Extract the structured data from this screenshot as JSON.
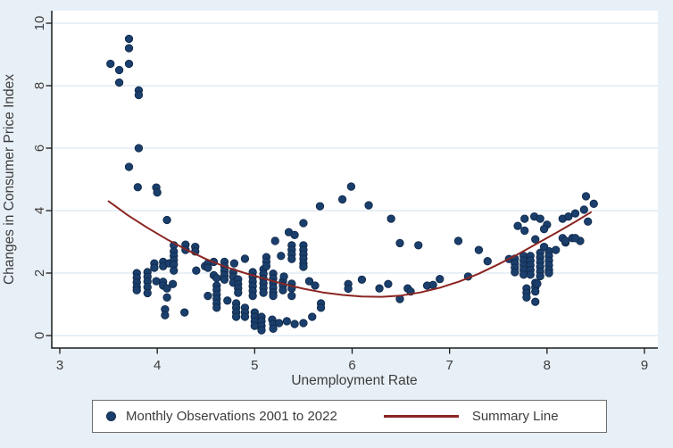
{
  "figure": {
    "background_color": "#e8f0f7",
    "plot_background": "#ffffff",
    "grid_color": "#dce8f1",
    "axis_color": "#1a1a1a",
    "text_color": "#3c3c3c",
    "dot_color": "#1b3f6d",
    "dot_edge_color": "#102a4a",
    "line_color": "#8b2522"
  },
  "legend": {
    "scatter_label": "Monthly Observations 2001 to 2022",
    "line_label": "Summary Line"
  },
  "chart_data": {
    "type": "scatter",
    "title": "",
    "xlabel": "Unemployment Rate",
    "ylabel": "Changes in Consumer Price Index",
    "xlim": [
      2.92,
      9.13
    ],
    "ylim": [
      -0.4,
      10.4
    ],
    "xticks": [
      3,
      4,
      5,
      6,
      7,
      8,
      9
    ],
    "yticks": [
      0,
      2,
      4,
      6,
      8,
      10
    ],
    "grid": "horizontal",
    "legend_position": "bottom",
    "series": [
      {
        "name": "Monthly Observations 2001 to 2022",
        "type": "scatter",
        "color": "#1b3f6d",
        "points": [
          [
            3.52,
            8.7
          ],
          [
            3.61,
            8.5
          ],
          [
            3.61,
            8.1
          ],
          [
            3.71,
            9.5
          ],
          [
            3.71,
            9.2
          ],
          [
            3.71,
            8.7
          ],
          [
            3.81,
            7.85
          ],
          [
            3.81,
            7.7
          ],
          [
            3.81,
            6.0
          ],
          [
            3.71,
            5.4
          ],
          [
            3.8,
            4.75
          ],
          [
            3.99,
            4.74
          ],
          [
            4.0,
            4.58
          ],
          [
            4.1,
            3.7
          ],
          [
            3.79,
            2.0
          ],
          [
            3.79,
            1.85
          ],
          [
            3.79,
            1.7
          ],
          [
            3.79,
            1.55
          ],
          [
            3.79,
            1.45
          ],
          [
            3.9,
            2.03
          ],
          [
            3.9,
            1.88
          ],
          [
            3.9,
            1.73
          ],
          [
            3.9,
            1.55
          ],
          [
            3.9,
            1.36
          ],
          [
            3.97,
            2.31
          ],
          [
            3.97,
            2.17
          ],
          [
            3.99,
            1.74
          ],
          [
            4.06,
            2.36
          ],
          [
            4.06,
            2.22
          ],
          [
            4.06,
            1.72
          ],
          [
            4.06,
            1.6
          ],
          [
            4.1,
            1.51
          ],
          [
            4.1,
            1.22
          ],
          [
            4.12,
            2.31
          ],
          [
            4.16,
            1.65
          ],
          [
            4.08,
            0.84
          ],
          [
            4.08,
            0.65
          ],
          [
            4.28,
            0.74
          ],
          [
            4.17,
            2.89
          ],
          [
            4.17,
            2.69
          ],
          [
            4.17,
            2.55
          ],
          [
            4.17,
            2.41
          ],
          [
            4.17,
            2.27
          ],
          [
            4.17,
            2.08
          ],
          [
            4.29,
            2.91
          ],
          [
            4.29,
            2.74
          ],
          [
            4.39,
            2.84
          ],
          [
            4.39,
            2.69
          ],
          [
            4.4,
            2.08
          ],
          [
            4.49,
            2.22
          ],
          [
            4.52,
            2.31
          ],
          [
            4.52,
            2.17
          ],
          [
            4.52,
            1.27
          ],
          [
            4.58,
            2.36
          ],
          [
            4.58,
            1.93
          ],
          [
            4.61,
            1.84
          ],
          [
            4.61,
            1.6
          ],
          [
            4.61,
            1.46
          ],
          [
            4.61,
            1.31
          ],
          [
            4.61,
            1.17
          ],
          [
            4.61,
            1.03
          ],
          [
            4.61,
            0.89
          ],
          [
            4.69,
            2.36
          ],
          [
            4.69,
            2.21
          ],
          [
            4.69,
            2.07
          ],
          [
            4.69,
            1.93
          ],
          [
            4.69,
            1.79
          ],
          [
            4.72,
            1.12
          ],
          [
            4.78,
            2.03
          ],
          [
            4.78,
            1.88
          ],
          [
            4.78,
            1.69
          ],
          [
            4.79,
            2.31
          ],
          [
            4.81,
            1.03
          ],
          [
            4.81,
            0.89
          ],
          [
            4.81,
            0.74
          ],
          [
            4.81,
            0.6
          ],
          [
            4.83,
            1.8
          ],
          [
            4.83,
            1.65
          ],
          [
            4.83,
            1.51
          ],
          [
            4.83,
            1.37
          ],
          [
            4.9,
            2.46
          ],
          [
            4.9,
            0.89
          ],
          [
            4.9,
            0.74
          ],
          [
            4.9,
            0.6
          ],
          [
            4.98,
            2.03
          ],
          [
            4.98,
            1.88
          ],
          [
            4.98,
            1.73
          ],
          [
            4.98,
            1.58
          ],
          [
            4.98,
            1.43
          ],
          [
            4.98,
            1.27
          ],
          [
            5.0,
            0.74
          ],
          [
            5.0,
            0.6
          ],
          [
            5.0,
            0.45
          ],
          [
            5.0,
            0.31
          ],
          [
            5.07,
            0.6
          ],
          [
            5.07,
            0.46
          ],
          [
            5.07,
            0.31
          ],
          [
            5.07,
            0.17
          ],
          [
            5.09,
            2.12
          ],
          [
            5.09,
            1.97
          ],
          [
            5.09,
            1.82
          ],
          [
            5.09,
            1.67
          ],
          [
            5.09,
            1.52
          ],
          [
            5.09,
            1.37
          ],
          [
            5.12,
            2.51
          ],
          [
            5.12,
            2.36
          ],
          [
            5.12,
            2.22
          ],
          [
            5.18,
            0.51
          ],
          [
            5.19,
            1.98
          ],
          [
            5.19,
            1.83
          ],
          [
            5.19,
            1.68
          ],
          [
            5.19,
            1.53
          ],
          [
            5.19,
            1.38
          ],
          [
            5.19,
            1.27
          ],
          [
            5.19,
            0.37
          ],
          [
            5.19,
            0.22
          ],
          [
            5.21,
            3.03
          ],
          [
            5.25,
            0.4
          ],
          [
            5.27,
            2.55
          ],
          [
            5.29,
            1.74
          ],
          [
            5.29,
            1.6
          ],
          [
            5.29,
            1.45
          ],
          [
            5.3,
            1.89
          ],
          [
            5.33,
            0.46
          ],
          [
            5.35,
            3.31
          ],
          [
            5.38,
            2.89
          ],
          [
            5.38,
            2.74
          ],
          [
            5.38,
            2.6
          ],
          [
            5.38,
            2.45
          ],
          [
            5.38,
            1.66
          ],
          [
            5.38,
            1.51
          ],
          [
            5.38,
            1.27
          ],
          [
            5.41,
            0.37
          ],
          [
            5.41,
            3.22
          ],
          [
            5.5,
            2.89
          ],
          [
            5.5,
            2.74
          ],
          [
            5.5,
            2.6
          ],
          [
            5.5,
            2.46
          ],
          [
            5.5,
            2.31
          ],
          [
            5.5,
            2.2
          ],
          [
            5.5,
            0.4
          ],
          [
            5.5,
            3.6
          ],
          [
            5.56,
            1.74
          ],
          [
            5.59,
            0.6
          ],
          [
            5.62,
            1.6
          ],
          [
            5.68,
            1.03
          ],
          [
            5.68,
            0.89
          ],
          [
            5.67,
            4.14
          ],
          [
            5.9,
            4.36
          ],
          [
            5.99,
            4.77
          ],
          [
            6.17,
            4.17
          ],
          [
            6.4,
            3.74
          ],
          [
            5.96,
            1.65
          ],
          [
            5.96,
            1.5
          ],
          [
            6.1,
            1.79
          ],
          [
            6.28,
            1.51
          ],
          [
            6.37,
            1.65
          ],
          [
            6.49,
            1.17
          ],
          [
            6.57,
            1.51
          ],
          [
            6.49,
            2.96
          ],
          [
            6.68,
            2.89
          ],
          [
            6.6,
            1.41
          ],
          [
            6.77,
            1.6
          ],
          [
            6.83,
            1.62
          ],
          [
            6.9,
            1.81
          ],
          [
            7.19,
            1.89
          ],
          [
            7.09,
            3.03
          ],
          [
            7.3,
            2.74
          ],
          [
            7.39,
            2.38
          ],
          [
            7.61,
            2.45
          ],
          [
            7.67,
            2.46
          ],
          [
            7.67,
            2.31
          ],
          [
            7.67,
            2.17
          ],
          [
            7.67,
            2.03
          ],
          [
            7.76,
            2.55
          ],
          [
            7.76,
            2.4
          ],
          [
            7.76,
            2.25
          ],
          [
            7.76,
            2.1
          ],
          [
            7.76,
            1.95
          ],
          [
            7.83,
            2.55
          ],
          [
            7.83,
            2.4
          ],
          [
            7.83,
            2.25
          ],
          [
            7.83,
            2.1
          ],
          [
            7.83,
            1.95
          ],
          [
            7.93,
            2.65
          ],
          [
            7.93,
            2.5
          ],
          [
            7.93,
            2.35
          ],
          [
            7.93,
            2.2
          ],
          [
            7.93,
            2.05
          ],
          [
            7.93,
            1.9
          ],
          [
            8.02,
            2.7
          ],
          [
            8.02,
            2.55
          ],
          [
            8.02,
            2.4
          ],
          [
            8.02,
            2.25
          ],
          [
            8.02,
            2.1
          ],
          [
            8.02,
            2.0
          ],
          [
            7.7,
            3.51
          ],
          [
            7.77,
            3.74
          ],
          [
            7.87,
            3.81
          ],
          [
            7.93,
            3.74
          ],
          [
            7.77,
            3.36
          ],
          [
            8.0,
            3.55
          ],
          [
            7.97,
            3.41
          ],
          [
            7.88,
            3.08
          ],
          [
            7.97,
            2.84
          ],
          [
            8.09,
            2.74
          ],
          [
            8.19,
            2.98
          ],
          [
            8.26,
            3.12
          ],
          [
            8.34,
            3.03
          ],
          [
            7.79,
            1.51
          ],
          [
            7.79,
            1.37
          ],
          [
            7.79,
            1.22
          ],
          [
            7.88,
            1.69
          ],
          [
            7.88,
            1.55
          ],
          [
            7.88,
            1.41
          ],
          [
            7.88,
            1.08
          ],
          [
            7.9,
            1.66
          ],
          [
            8.16,
            3.74
          ],
          [
            8.22,
            3.81
          ],
          [
            8.29,
            3.91
          ],
          [
            8.4,
            4.46
          ],
          [
            8.48,
            4.22
          ],
          [
            8.38,
            4.03
          ],
          [
            8.42,
            3.65
          ],
          [
            8.16,
            3.12
          ],
          [
            8.29,
            3.12
          ],
          [
            8.19,
            3.03
          ]
        ]
      },
      {
        "name": "Summary Line",
        "type": "line",
        "color": "#8b2522",
        "points": [
          [
            3.5,
            4.3
          ],
          [
            3.7,
            3.85
          ],
          [
            3.9,
            3.45
          ],
          [
            4.1,
            3.08
          ],
          [
            4.3,
            2.75
          ],
          [
            4.5,
            2.45
          ],
          [
            4.7,
            2.2
          ],
          [
            4.9,
            2.0
          ],
          [
            5.1,
            1.82
          ],
          [
            5.3,
            1.65
          ],
          [
            5.5,
            1.5
          ],
          [
            5.7,
            1.38
          ],
          [
            5.9,
            1.3
          ],
          [
            6.1,
            1.25
          ],
          [
            6.3,
            1.24
          ],
          [
            6.5,
            1.28
          ],
          [
            6.7,
            1.38
          ],
          [
            6.9,
            1.53
          ],
          [
            7.1,
            1.73
          ],
          [
            7.3,
            1.98
          ],
          [
            7.5,
            2.28
          ],
          [
            7.7,
            2.6
          ],
          [
            7.9,
            2.95
          ],
          [
            8.1,
            3.3
          ],
          [
            8.3,
            3.66
          ],
          [
            8.45,
            3.95
          ]
        ]
      }
    ]
  }
}
